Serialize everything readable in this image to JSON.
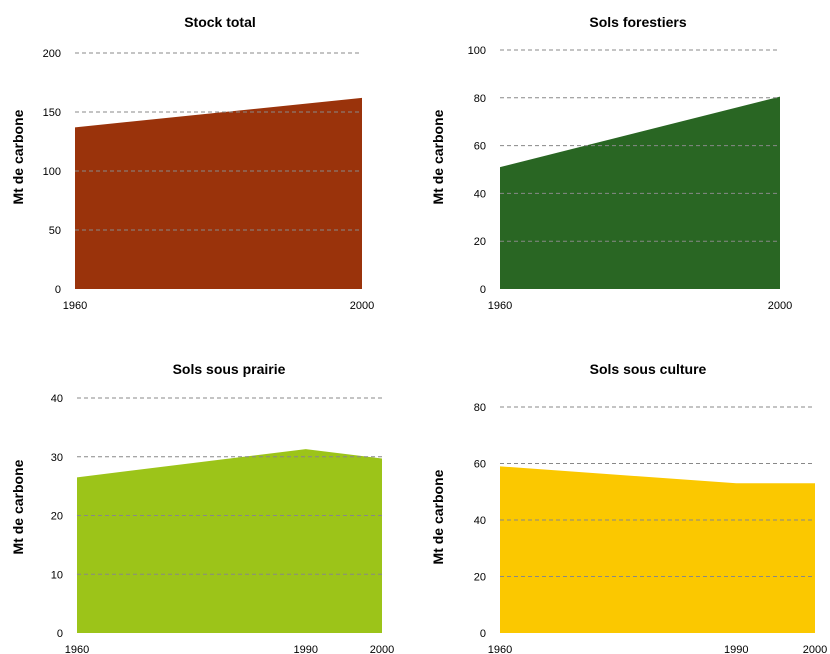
{
  "chart_data": [
    {
      "type": "area",
      "title": "Stock total",
      "ylabel": "Mt de carbone",
      "xlabel": "",
      "x": [
        "1960",
        "2000"
      ],
      "values": [
        137,
        162
      ],
      "yticks": [
        0,
        50,
        100,
        150,
        200
      ],
      "ylim": [
        0,
        200
      ],
      "color": "#9a330b",
      "grid": "dashed"
    },
    {
      "type": "area",
      "title": "Sols forestiers",
      "ylabel": "Mt de carbone",
      "xlabel": "",
      "x": [
        "1960",
        "2000"
      ],
      "values": [
        51,
        80.5
      ],
      "yticks": [
        0,
        20,
        40,
        60,
        80,
        100
      ],
      "ylim": [
        0,
        100
      ],
      "color": "#296623",
      "grid": "dashed"
    },
    {
      "type": "area",
      "title": "Sols sous prairie",
      "ylabel": "Mt de carbone",
      "xlabel": "",
      "x": [
        "1960",
        "1990",
        "2000"
      ],
      "values": [
        26.5,
        31.3,
        29.7
      ],
      "yticks": [
        0,
        10,
        20,
        30,
        40
      ],
      "ylim": [
        0,
        40
      ],
      "color": "#9cc419",
      "grid": "dashed"
    },
    {
      "type": "area",
      "title": "Sols sous culture",
      "ylabel": "Mt de carbone",
      "xlabel": "",
      "x": [
        "1960",
        "1990",
        "2000"
      ],
      "values": [
        59,
        53,
        53
      ],
      "yticks": [
        0,
        20,
        40,
        60,
        80
      ],
      "ylim": [
        0,
        80
      ],
      "color": "#fbc800",
      "grid": "dashed"
    }
  ]
}
